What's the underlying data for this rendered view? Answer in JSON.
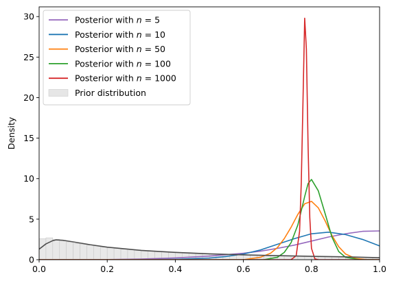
{
  "chart_data": {
    "type": "line",
    "title": "",
    "xlabel": "",
    "ylabel": "Density",
    "xlim": [
      0.0,
      1.0
    ],
    "ylim": [
      0,
      31.2
    ],
    "xticks": [
      "0.0",
      "0.2",
      "0.4",
      "0.6",
      "0.8",
      "1.0"
    ],
    "yticks": [
      "0",
      "5",
      "10",
      "15",
      "20",
      "25",
      "30"
    ],
    "grid": false,
    "legend_position": "top-left",
    "series": [
      {
        "name": "Posterior with n = 5",
        "color": "#9467bd",
        "x": [
          0.0,
          0.1,
          0.2,
          0.3,
          0.4,
          0.5,
          0.6,
          0.65,
          0.7,
          0.75,
          0.8,
          0.85,
          0.9,
          0.95,
          1.0
        ],
        "y": [
          0.0,
          0.0,
          0.02,
          0.08,
          0.22,
          0.45,
          0.8,
          1.05,
          1.4,
          1.8,
          2.3,
          2.8,
          3.2,
          3.5,
          3.55
        ]
      },
      {
        "name": "Posterior with n = 10",
        "color": "#1f77b4",
        "x": [
          0.0,
          0.3,
          0.4,
          0.5,
          0.55,
          0.6,
          0.65,
          0.7,
          0.75,
          0.8,
          0.85,
          0.9,
          0.95,
          1.0
        ],
        "y": [
          0.0,
          0.0,
          0.05,
          0.2,
          0.4,
          0.7,
          1.2,
          1.9,
          2.6,
          3.2,
          3.4,
          3.1,
          2.5,
          1.7
        ]
      },
      {
        "name": "Posterior with n = 50",
        "color": "#ff7f0e",
        "x": [
          0.0,
          0.6,
          0.65,
          0.68,
          0.7,
          0.72,
          0.74,
          0.76,
          0.78,
          0.8,
          0.82,
          0.84,
          0.86,
          0.88,
          0.9,
          0.93,
          0.96,
          1.0
        ],
        "y": [
          0.0,
          0.0,
          0.3,
          0.8,
          1.5,
          2.6,
          4.0,
          5.6,
          6.9,
          7.2,
          6.4,
          4.8,
          3.0,
          1.6,
          0.7,
          0.15,
          0.02,
          0.0
        ]
      },
      {
        "name": "Posterior with n = 100",
        "color": "#2ca02c",
        "x": [
          0.0,
          0.66,
          0.7,
          0.72,
          0.74,
          0.76,
          0.78,
          0.79,
          0.8,
          0.82,
          0.84,
          0.86,
          0.88,
          0.9,
          0.94,
          1.0
        ],
        "y": [
          0.0,
          0.0,
          0.3,
          0.9,
          2.1,
          4.3,
          7.8,
          9.4,
          9.9,
          8.5,
          5.7,
          2.8,
          1.0,
          0.3,
          0.02,
          0.0
        ]
      },
      {
        "name": "Posterior with n = 1000",
        "color": "#d62728",
        "x": [
          0.0,
          0.74,
          0.755,
          0.765,
          0.77,
          0.775,
          0.78,
          0.785,
          0.79,
          0.795,
          0.8,
          0.81,
          0.82,
          1.0
        ],
        "y": [
          0.0,
          0.0,
          0.5,
          3.5,
          9.5,
          19.5,
          29.8,
          26.0,
          14.0,
          5.2,
          1.4,
          0.1,
          0.0,
          0.0
        ]
      },
      {
        "name": "",
        "color": "#4d4d4d",
        "x": [
          0.0,
          0.02,
          0.04,
          0.05,
          0.07,
          0.1,
          0.15,
          0.2,
          0.3,
          0.4,
          0.5,
          0.6,
          0.7,
          0.8,
          0.9,
          1.0
        ],
        "y": [
          1.3,
          1.95,
          2.35,
          2.45,
          2.4,
          2.2,
          1.85,
          1.55,
          1.15,
          0.9,
          0.72,
          0.6,
          0.5,
          0.42,
          0.35,
          0.25
        ]
      }
    ],
    "prior_histogram": {
      "name": "Prior distribution",
      "color": "#d9d9d9",
      "bin_edges": [
        0.0,
        0.02,
        0.04,
        0.06,
        0.08,
        0.1,
        0.12,
        0.14,
        0.16,
        0.18,
        0.2,
        0.22,
        0.24,
        0.26,
        0.28,
        0.3,
        0.32,
        0.34,
        0.36,
        0.38,
        0.4,
        0.42,
        0.44,
        0.46,
        0.48,
        0.5,
        0.52,
        0.54,
        0.56,
        0.58,
        0.6,
        0.62,
        0.64,
        0.66,
        0.68,
        0.7,
        0.72,
        0.74,
        0.76,
        0.78,
        0.8,
        0.82,
        0.84,
        0.86,
        0.88,
        0.9,
        0.92,
        0.94,
        0.96,
        0.98,
        1.0
      ],
      "values": [
        2.6,
        2.7,
        2.5,
        2.3,
        2.2,
        2.0,
        1.9,
        1.8,
        1.7,
        1.55,
        1.5,
        1.4,
        1.3,
        1.25,
        1.2,
        1.1,
        1.05,
        1.0,
        0.95,
        0.95,
        0.9,
        0.85,
        0.8,
        0.8,
        0.75,
        0.72,
        0.7,
        0.68,
        0.65,
        0.62,
        0.6,
        0.58,
        0.56,
        0.55,
        0.52,
        0.5,
        0.5,
        0.48,
        0.46,
        0.45,
        0.42,
        0.41,
        0.4,
        0.38,
        0.36,
        0.35,
        0.33,
        0.3,
        0.28,
        0.25
      ]
    },
    "legend": [
      {
        "label": "Posterior with $n = 5$",
        "color": "#9467bd",
        "kind": "line"
      },
      {
        "label": "Posterior with $n = 10$",
        "color": "#1f77b4",
        "kind": "line"
      },
      {
        "label": "Posterior with $n = 50$",
        "color": "#ff7f0e",
        "kind": "line"
      },
      {
        "label": "Posterior with $n = 100$",
        "color": "#2ca02c",
        "kind": "line"
      },
      {
        "label": "Posterior with $n = 1000$",
        "color": "#d62728",
        "kind": "line"
      },
      {
        "label": "Prior distribution",
        "color": "#e6e6e6",
        "kind": "patch"
      }
    ]
  }
}
